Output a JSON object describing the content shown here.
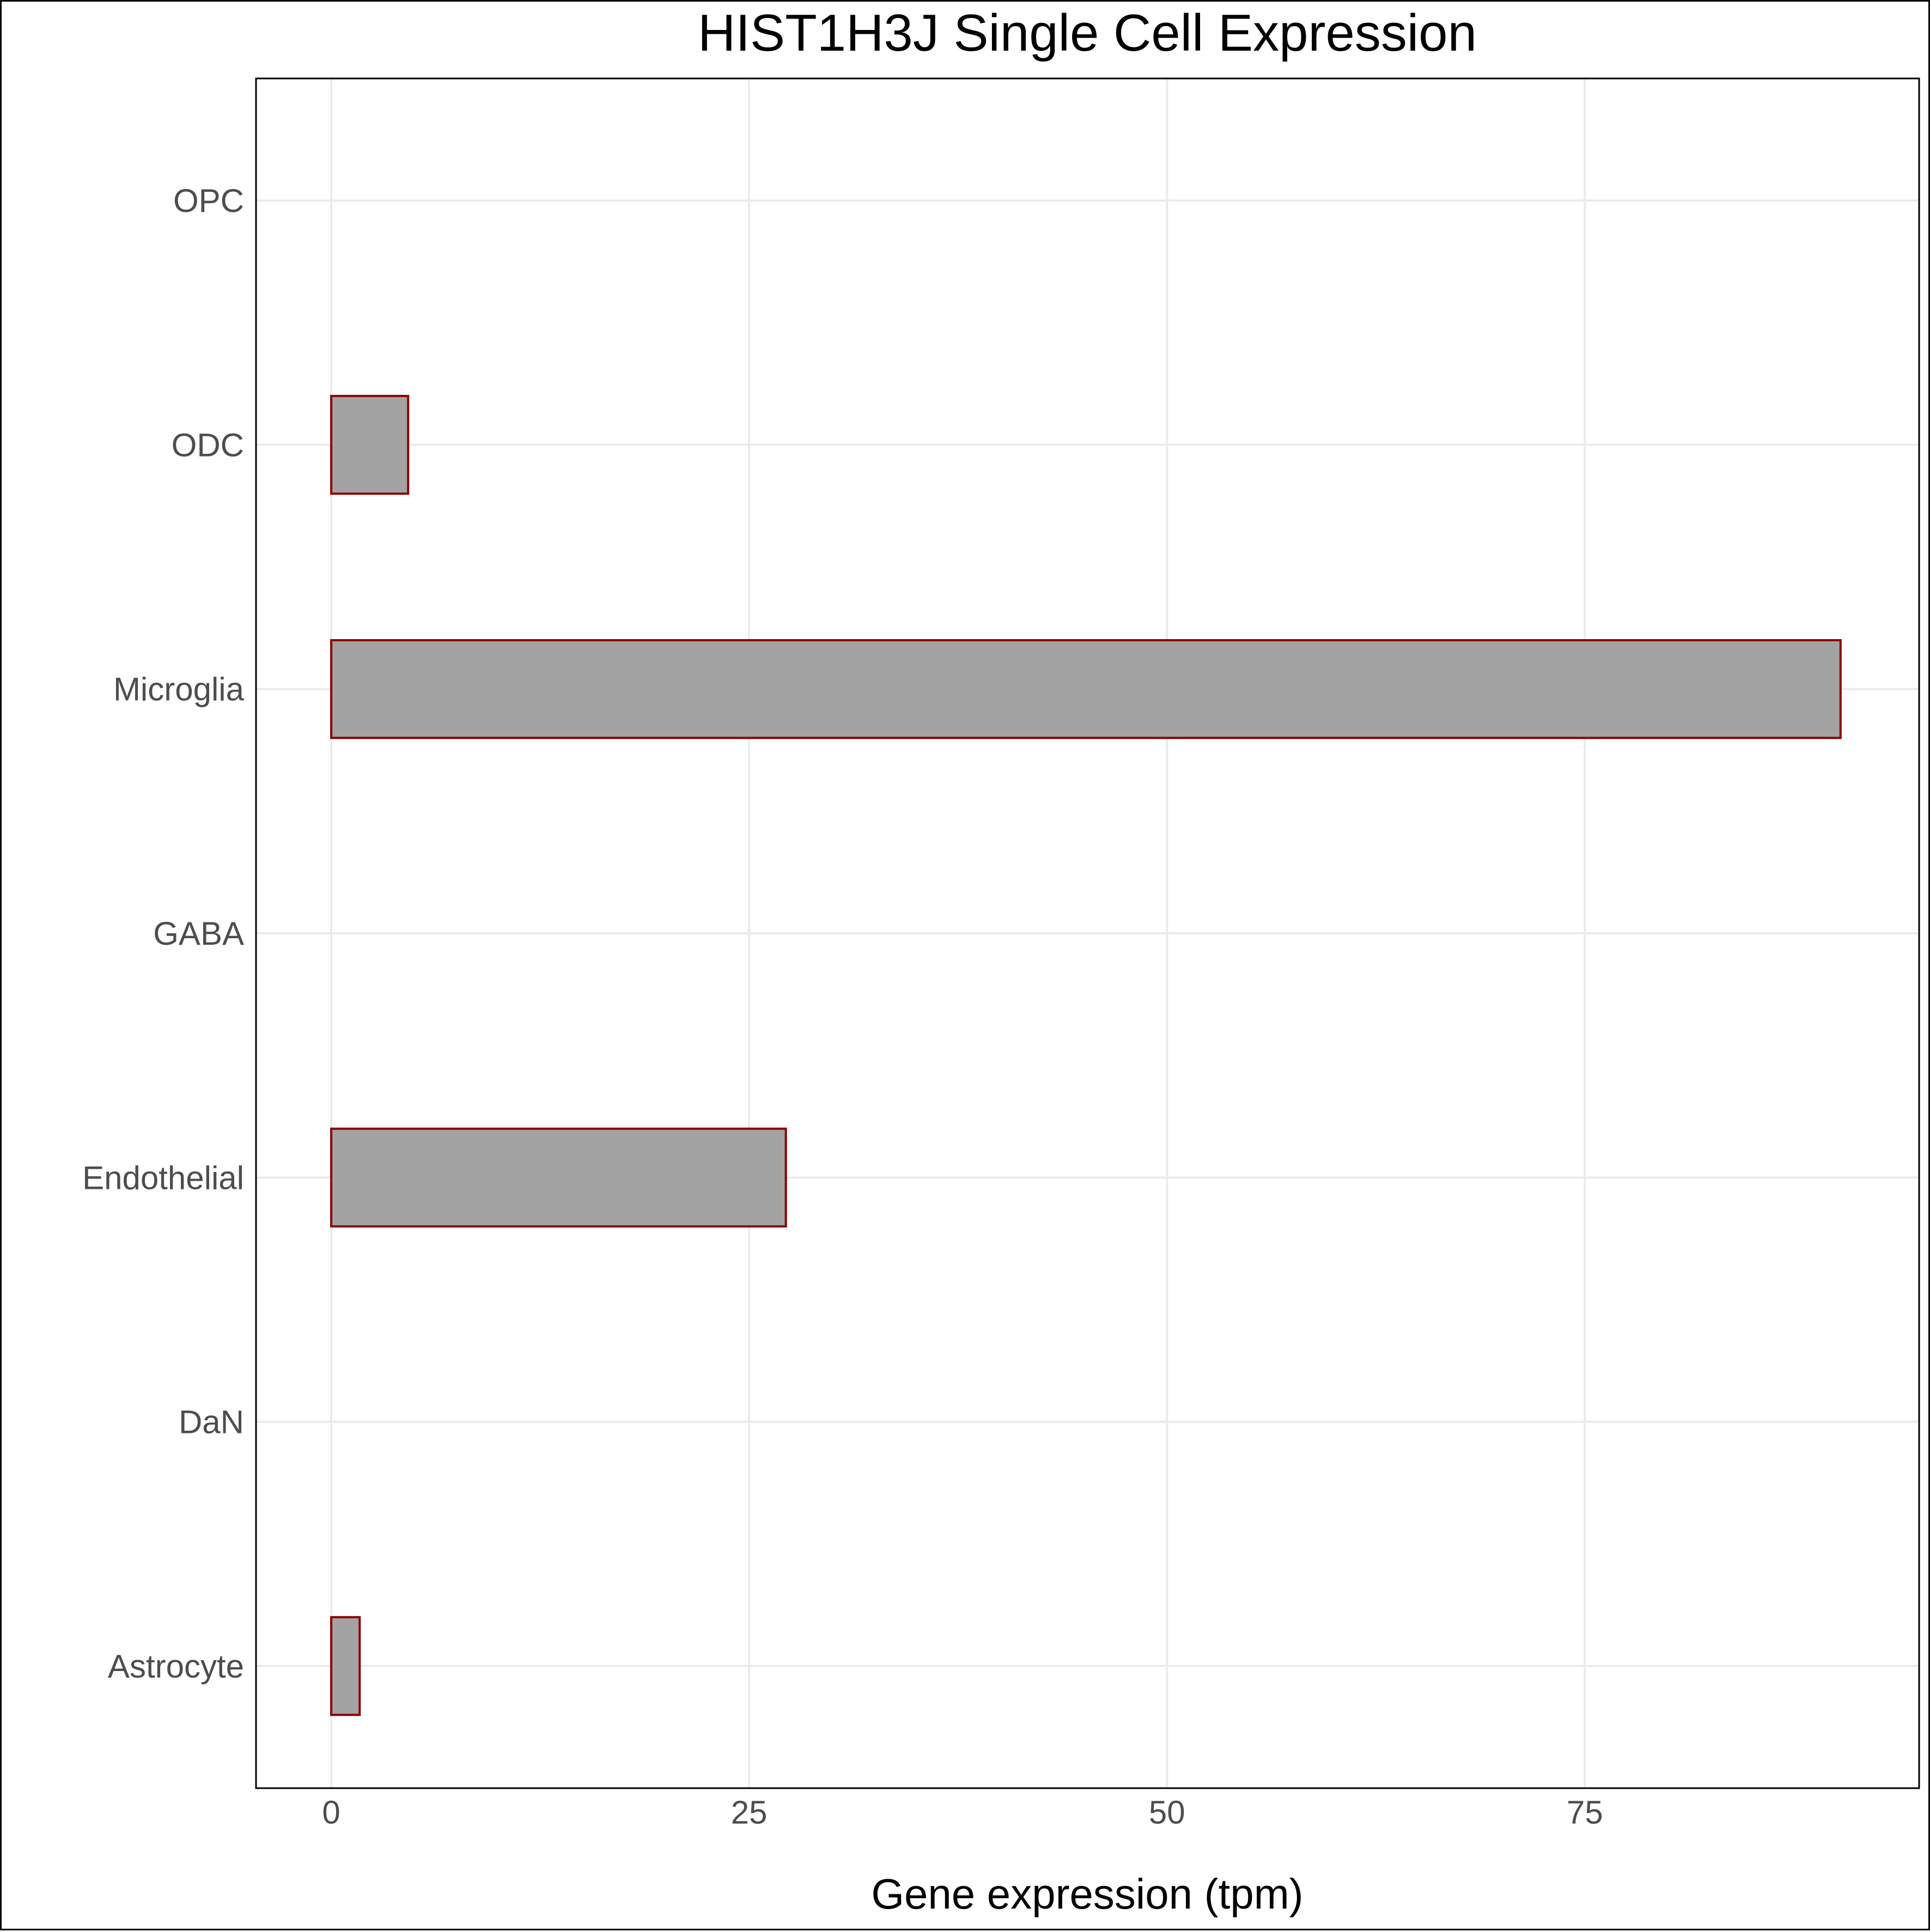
{
  "chart_data": {
    "type": "bar",
    "orientation": "horizontal",
    "title": "HIST1H3J Single Cell Expression",
    "xlabel": "Gene expression (tpm)",
    "ylabel": "",
    "categories": [
      "Astrocyte",
      "DaN",
      "Endothelial",
      "GABA",
      "Microglia",
      "ODC",
      "OPC"
    ],
    "values": [
      1.7,
      0.0,
      27.2,
      0.0,
      90.3,
      4.6,
      0.0
    ],
    "xlim": [
      -4.5,
      95
    ],
    "xticks": [
      0,
      25,
      50,
      75
    ],
    "grid": true,
    "bar_fill": "#a3a3a3",
    "bar_stroke": "#8b0000",
    "grid_color": "#ebebeb"
  }
}
